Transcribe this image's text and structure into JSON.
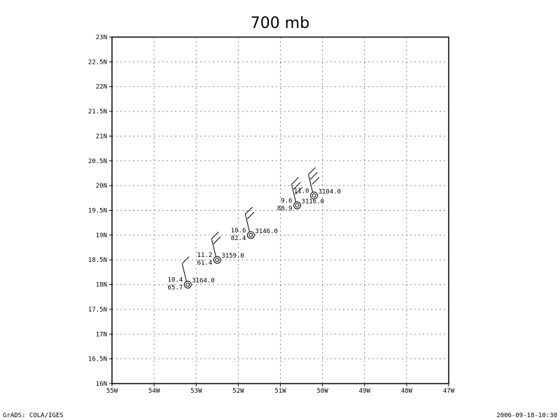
{
  "chart_data": {
    "type": "scatter",
    "title": "700 mb",
    "x_ticks": [
      "55W",
      "54W",
      "53W",
      "52W",
      "51W",
      "50W",
      "49W",
      "48W",
      "47W"
    ],
    "y_ticks": [
      "16N",
      "16.5N",
      "17N",
      "17.5N",
      "18N",
      "18.5N",
      "19N",
      "19.5N",
      "20N",
      "20.5N",
      "21N",
      "21.5N",
      "22N",
      "22.5N",
      "23N"
    ],
    "xlim": [
      -55,
      -47
    ],
    "ylim": [
      16,
      23
    ],
    "grid": true,
    "points": [
      {
        "lon": -53.2,
        "lat": 18.0,
        "speed": "10.4",
        "height": "3164.0",
        "dir": "65.7",
        "flags": [
          1,
          0,
          0
        ]
      },
      {
        "lon": -52.5,
        "lat": 18.5,
        "speed": "11.2",
        "height": "3159.0",
        "dir": "61.4",
        "flags": [
          1,
          1,
          0
        ]
      },
      {
        "lon": -51.7,
        "lat": 19.0,
        "speed": "10.6",
        "height": "3146.0",
        "dir": "82.4",
        "flags": [
          1,
          1,
          0
        ]
      },
      {
        "lon": -50.6,
        "lat": 19.6,
        "speed": "9.6",
        "height": "3116.0",
        "dir": "88.9",
        "flags": [
          1,
          1,
          1
        ]
      },
      {
        "lon": -50.2,
        "lat": 19.8,
        "speed": "11.0",
        "height": "3104.0",
        "dir": "",
        "flags": [
          1,
          1,
          1
        ]
      }
    ]
  },
  "footer": {
    "left": "GrADS: COLA/IGES",
    "right": "2006-09-18-10:30"
  }
}
